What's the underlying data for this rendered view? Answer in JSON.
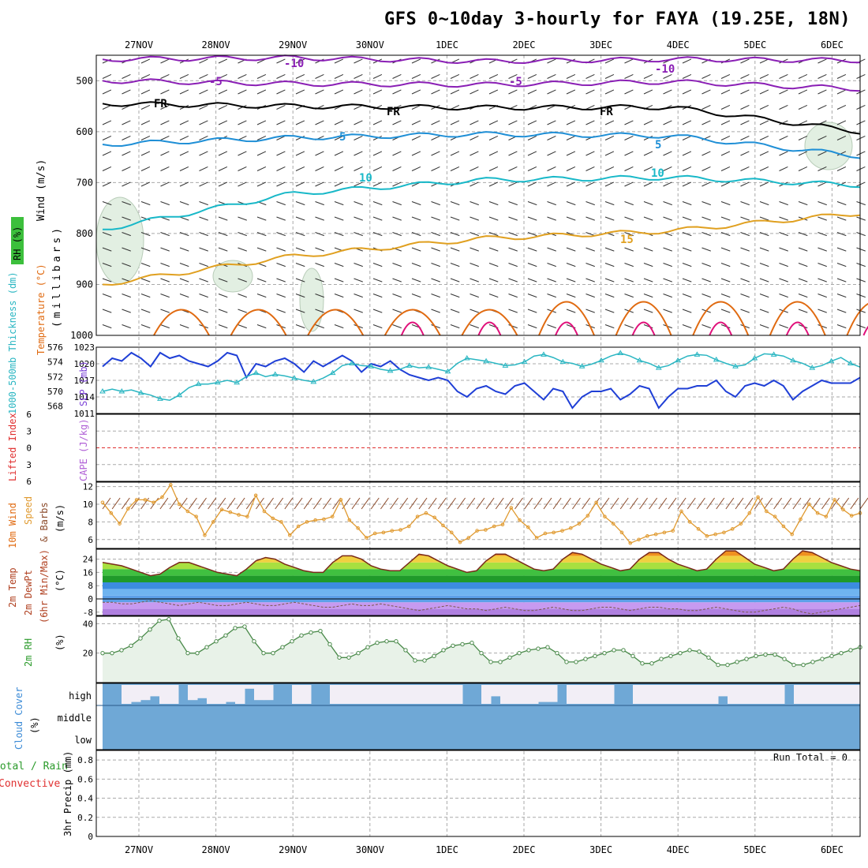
{
  "title": "GFS 0~10day 3-hourly for FAYA (19.25E, 18N)",
  "dates": [
    "27NOV",
    "28NOV",
    "29NOV",
    "30NOV",
    "1DEC",
    "2DEC",
    "3DEC",
    "4DEC",
    "5DEC",
    "6DEC"
  ],
  "run_total": "Run Total = 0",
  "colors": {
    "grid": "#a9a9a9",
    "rh_fill": "#e2efe2",
    "temp_neg10": "#8a1fb5",
    "temp_fr": "#000000",
    "temp_5": "#1f8fd6",
    "temp_10": "#18b8c8",
    "temp_15": "#e0a020",
    "temp_20": "#e06a10",
    "temp_25": "#e0107a",
    "slp": "#1f3fd6",
    "thickness": "#2ab6c2",
    "wind10": "#e09a30",
    "rh2m": "#2a9a2a",
    "cloud": "#6fa8d6",
    "lifted_zero": "#e03030"
  },
  "chart_data": [
    {
      "type": "line",
      "panel": "upper-air",
      "ylabel_parts": [
        "Wind (m/s)",
        "Temperature (°C)",
        "RH (%)",
        "(millibars)"
      ],
      "y_ticks": [
        "500",
        "600",
        "700",
        "800",
        "900",
        "1000"
      ],
      "ylim": [
        1000,
        450
      ],
      "grid": true,
      "series": [
        {
          "name": "-10",
          "x": [
            0,
            3,
            6,
            9,
            12
          ],
          "values": [
            458,
            455,
            462,
            458,
            460
          ]
        },
        {
          "name": "-5",
          "x": [
            0,
            3,
            6,
            9,
            12
          ],
          "values": [
            500,
            506,
            508,
            502,
            516
          ]
        },
        {
          "name": "FR",
          "x": [
            0,
            3,
            6,
            9,
            12
          ],
          "values": [
            545,
            550,
            553,
            552,
            600
          ]
        },
        {
          "name": "5",
          "x": [
            0,
            3,
            6,
            9,
            12
          ],
          "values": [
            625,
            612,
            605,
            608,
            648
          ]
        },
        {
          "name": "10",
          "x": [
            0,
            3,
            6,
            9,
            12
          ],
          "values": [
            792,
            722,
            695,
            690,
            705
          ]
        },
        {
          "name": "15",
          "x": [
            0,
            3,
            6,
            9,
            12
          ],
          "values": [
            900,
            845,
            810,
            795,
            760
          ]
        }
      ],
      "contour_labels": [
        "-10",
        "-5",
        "FR",
        "5",
        "10",
        "15",
        "10"
      ]
    },
    {
      "type": "line",
      "panel": "slp-thickness",
      "ylabel_left": "1000-500mb Thickness (dm)",
      "ylabel_right": "SLP (mb)",
      "left_ticks": [
        "576",
        "574",
        "572",
        "570",
        "568"
      ],
      "right_ticks": [
        "1023",
        "1020",
        "1017",
        "1014",
        "1011"
      ],
      "ylim_left": [
        567,
        576
      ],
      "ylim_right": [
        1011,
        1023
      ],
      "series": [
        {
          "name": "SLP",
          "axis": "right",
          "values": [
            1019.5,
            1021,
            1020.5,
            1022,
            1021,
            1019.5,
            1022,
            1021,
            1021.5,
            1020.5,
            1020,
            1019.5,
            1020.5,
            1022,
            1021.5,
            1017.5,
            1020,
            1019.5,
            1020.5,
            1021,
            1020,
            1018.5,
            1020.5,
            1019.5,
            1020.5,
            1021.5,
            1020.5,
            1018.5,
            1020,
            1019.5,
            1020.5,
            1019,
            1018,
            1017.5,
            1017,
            1017.5,
            1017,
            1015,
            1014,
            1015.5,
            1016,
            1015,
            1014.5,
            1016,
            1016.5,
            1015,
            1013.5,
            1015.5,
            1015,
            1012,
            1014,
            1015,
            1015,
            1015.5,
            1013.5,
            1014.5,
            1016,
            1015.5,
            1012,
            1014,
            1015.5,
            1015.5,
            1016,
            1016,
            1017,
            1015,
            1014,
            1016,
            1016.5,
            1016,
            1017,
            1016,
            1013.5,
            1015,
            1016,
            1017,
            1016.5,
            1016.5,
            1016.5,
            1017.5
          ]
        },
        {
          "name": "Thickness",
          "axis": "left",
          "values": [
            570,
            570.3,
            570,
            570.2,
            569.8,
            569.5,
            569,
            568.8,
            569.5,
            570.5,
            571,
            571,
            571.2,
            571.5,
            571.2,
            572,
            572.5,
            572,
            572.3,
            572.1,
            571.8,
            571.5,
            571.3,
            571.8,
            572.5,
            573.5,
            573.8,
            573.5,
            573.4,
            573,
            572.8,
            573,
            573.5,
            573.2,
            573.3,
            573,
            572.7,
            573.8,
            574.5,
            574.3,
            574.1,
            573.8,
            573.5,
            573.6,
            574,
            574.8,
            575,
            574.6,
            574,
            573.8,
            573.4,
            573.7,
            574.2,
            574.8,
            575.2,
            574.8,
            574.2,
            573.8,
            573.2,
            573.5,
            574.2,
            574.8,
            575,
            574.9,
            574.3,
            573.8,
            573.4,
            573.6,
            574.5,
            575.1,
            575,
            574.8,
            574.2,
            573.8,
            573.2,
            573.5,
            574.1,
            574.6,
            573.8,
            573.3
          ]
        }
      ]
    },
    {
      "type": "line",
      "panel": "stability",
      "ylabel_left": "Lifted Index",
      "ylabel_right": "CAPE (J/kg)",
      "ticks": [
        "6",
        "3",
        "0",
        "3",
        "6"
      ],
      "ylim": [
        6,
        -6
      ],
      "series": []
    },
    {
      "type": "line",
      "panel": "wind10m",
      "ylabel_parts": [
        "10m Wind",
        "Speed",
        "& Barbs",
        "(m/s)"
      ],
      "y_ticks": [
        "12",
        "10",
        "8",
        "6"
      ],
      "ylim": [
        5,
        12.5
      ],
      "series": [
        {
          "name": "Speed",
          "values": [
            10.2,
            9,
            7.8,
            9.5,
            10.5,
            10.5,
            10.2,
            10.8,
            12.2,
            10,
            9.2,
            8.6,
            6.5,
            8,
            9.4,
            9.1,
            8.8,
            8.6,
            11,
            9.2,
            8.4,
            8,
            6.5,
            7.5,
            8,
            8.2,
            8.3,
            8.6,
            10.5,
            8.2,
            7.3,
            6.2,
            6.7,
            6.8,
            7,
            7.1,
            7.5,
            8.6,
            9,
            8.5,
            7.6,
            6.8,
            5.7,
            6.2,
            7,
            7.1,
            7.5,
            7.7,
            9.6,
            8.2,
            7.4,
            6.2,
            6.7,
            6.8,
            7,
            7.3,
            7.8,
            8.7,
            10.2,
            8.6,
            7.8,
            6.8,
            5.6,
            6,
            6.4,
            6.6,
            6.8,
            7,
            9.2,
            8,
            7.2,
            6.4,
            6.6,
            6.8,
            7.2,
            7.8,
            9,
            10.8,
            9.2,
            8.6,
            7.5,
            6.6,
            8.3,
            10,
            9,
            8.6,
            10.5,
            9.4,
            8.7,
            9
          ]
        }
      ]
    },
    {
      "type": "area",
      "panel": "temp2m",
      "ylabel_parts": [
        "2m Temp",
        "2m DewPt",
        "(6hr Min/Max)",
        "(°C)"
      ],
      "y_ticks": [
        "24",
        "16",
        "8",
        "0",
        "-8"
      ],
      "ylim": [
        -10,
        30
      ],
      "series": [
        {
          "name": "Temp",
          "values": [
            22,
            21,
            20,
            18,
            16,
            14,
            15,
            19,
            22,
            22,
            20,
            18,
            16,
            15,
            14,
            18,
            23,
            25,
            24,
            21,
            19,
            17,
            16,
            16,
            22,
            26,
            26,
            24,
            20,
            18,
            17,
            17,
            22,
            27,
            26,
            23,
            20,
            18,
            16,
            17,
            23,
            27,
            27,
            24,
            21,
            18,
            17,
            18,
            24,
            28,
            27,
            24,
            21,
            19,
            17,
            18,
            24,
            28,
            28,
            24,
            21,
            19,
            17,
            18,
            24,
            29,
            29,
            25,
            21,
            19,
            17,
            18,
            24,
            29,
            28,
            25,
            22,
            20,
            18,
            17
          ]
        },
        {
          "name": "DewPt",
          "values": [
            -2,
            -2,
            -3,
            -3,
            -2,
            -1,
            -2,
            -3,
            -4,
            -3,
            -2,
            -3,
            -4,
            -4,
            -3,
            -2,
            -3,
            -4,
            -4,
            -3,
            -2,
            -3,
            -4,
            -5,
            -5,
            -4,
            -3,
            -4,
            -4,
            -3,
            -4,
            -5,
            -6,
            -7,
            -6,
            -5,
            -4,
            -5,
            -6,
            -6,
            -7,
            -6,
            -5,
            -6,
            -7,
            -7,
            -6,
            -5,
            -6,
            -7,
            -7,
            -6,
            -5,
            -5,
            -6,
            -7,
            -6,
            -5,
            -5,
            -6,
            -6,
            -7,
            -7,
            -6,
            -5,
            -6,
            -7,
            -8,
            -8,
            -7,
            -6,
            -5,
            -6,
            -8,
            -9,
            -8,
            -7,
            -6,
            -5,
            -4
          ]
        }
      ]
    },
    {
      "type": "area",
      "panel": "rh2m",
      "ylabel_parts": [
        "2m RH",
        "(%)"
      ],
      "y_ticks": [
        "40",
        "20"
      ],
      "ylim": [
        0,
        45
      ],
      "series": [
        {
          "name": "RH",
          "values": [
            20,
            20,
            22,
            25,
            30,
            36,
            42,
            43,
            30,
            20,
            20,
            24,
            28,
            32,
            37,
            38,
            28,
            20,
            20,
            24,
            28,
            32,
            34,
            35,
            26,
            17,
            17,
            20,
            24,
            27,
            28,
            28,
            22,
            15,
            15,
            18,
            22,
            25,
            26,
            27,
            20,
            14,
            14,
            17,
            20,
            22,
            23,
            24,
            20,
            14,
            14,
            16,
            18,
            20,
            22,
            22,
            18,
            13,
            13,
            16,
            18,
            20,
            22,
            21,
            17,
            12,
            12,
            14,
            16,
            18,
            19,
            19,
            16,
            12,
            12,
            14,
            16,
            18,
            20,
            22,
            24
          ]
        }
      ]
    },
    {
      "type": "bar",
      "panel": "cloud",
      "ylabel_parts": [
        "Cloud Cover",
        "(%)"
      ],
      "levels": [
        "high",
        "middle",
        "low"
      ],
      "series": [
        {
          "name": "high",
          "values": [
            100,
            100,
            0,
            10,
            20,
            40,
            0,
            0,
            100,
            20,
            30,
            0,
            0,
            10,
            0,
            80,
            20,
            20,
            100,
            100,
            0,
            0,
            100,
            100,
            0,
            0,
            0,
            0,
            0,
            0,
            0,
            0,
            0,
            0,
            0,
            0,
            0,
            0,
            100,
            100,
            0,
            40,
            0,
            0,
            0,
            0,
            10,
            10,
            100,
            0,
            0,
            0,
            0,
            0,
            100,
            100,
            0,
            0,
            0,
            0,
            0,
            0,
            0,
            0,
            0,
            40,
            0,
            0,
            0,
            0,
            0,
            0,
            100,
            0,
            0,
            0,
            0,
            0,
            0,
            0
          ]
        }
      ]
    },
    {
      "type": "line",
      "panel": "precip",
      "ylabel_parts": [
        "Total / Rain",
        "Convective",
        "3hr Precip (mm)"
      ],
      "y_ticks": [
        "0.8",
        "0.6",
        "0.4",
        "0.2",
        "0"
      ],
      "ylim": [
        0,
        0.9
      ],
      "series": []
    }
  ]
}
